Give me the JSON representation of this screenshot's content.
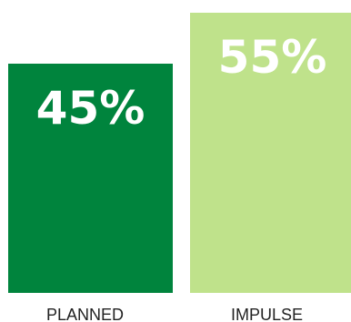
{
  "chart_data": {
    "type": "bar",
    "categories": [
      "PLANNED",
      "IMPULSE"
    ],
    "values": [
      45,
      55
    ],
    "value_labels": [
      "45%",
      "55%"
    ],
    "ylim": [
      0,
      55
    ],
    "grid": false,
    "legend": "none",
    "colors": [
      "#00843d",
      "#bfe28b"
    ]
  }
}
